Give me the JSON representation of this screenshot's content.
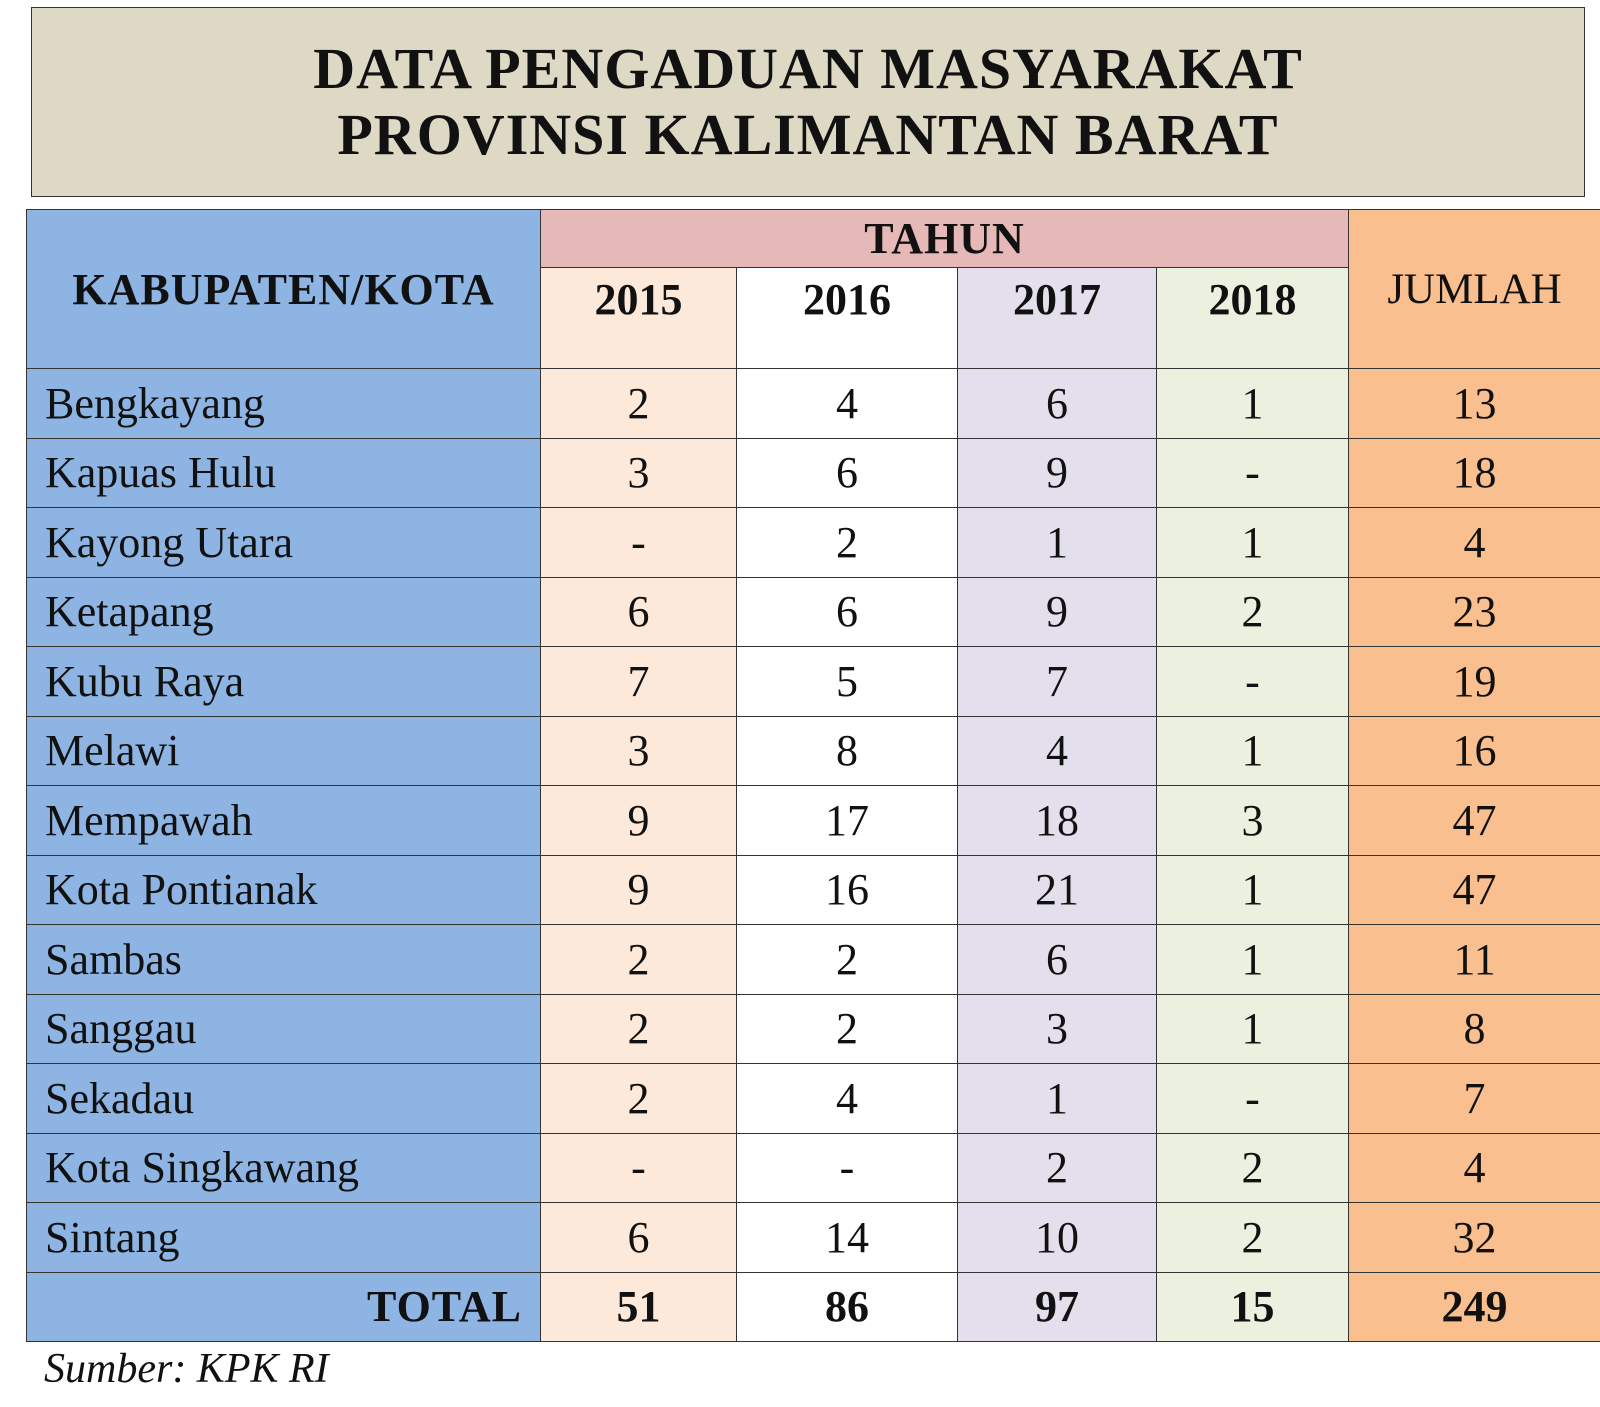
{
  "title": {
    "line1": "DATA PENGADUAN MASYARAKAT",
    "line2": "PROVINSI KALIMANTAN BARAT"
  },
  "table": {
    "header": {
      "region": "KABUPATEN/KOTA",
      "year_group": "TAHUN",
      "years": [
        "2015",
        "2016",
        "2017",
        "2018"
      ],
      "total": "JUMLAH"
    },
    "rows": [
      {
        "name": "Bengkayang",
        "v": [
          "2",
          "4",
          "6",
          "1"
        ],
        "total": "13"
      },
      {
        "name": "Kapuas Hulu",
        "v": [
          "3",
          "6",
          "9",
          "-"
        ],
        "total": "18"
      },
      {
        "name": "Kayong Utara",
        "v": [
          "-",
          "2",
          "1",
          "1"
        ],
        "total": "4"
      },
      {
        "name": "Ketapang",
        "v": [
          "6",
          "6",
          "9",
          "2"
        ],
        "total": "23"
      },
      {
        "name": "Kubu Raya",
        "v": [
          "7",
          "5",
          "7",
          "-"
        ],
        "total": "19"
      },
      {
        "name": "Melawi",
        "v": [
          "3",
          "8",
          "4",
          "1"
        ],
        "total": "16"
      },
      {
        "name": "Mempawah",
        "v": [
          "9",
          "17",
          "18",
          "3"
        ],
        "total": "47"
      },
      {
        "name": "Kota Pontianak",
        "v": [
          "9",
          "16",
          "21",
          "1"
        ],
        "total": "47"
      },
      {
        "name": "Sambas",
        "v": [
          "2",
          "2",
          "6",
          "1"
        ],
        "total": "11"
      },
      {
        "name": "Sanggau",
        "v": [
          "2",
          "2",
          "3",
          "1"
        ],
        "total": "8"
      },
      {
        "name": "Sekadau",
        "v": [
          "2",
          "4",
          "1",
          "-"
        ],
        "total": "7"
      },
      {
        "name": "Kota Singkawang",
        "v": [
          "-",
          "-",
          "2",
          "2"
        ],
        "total": "4"
      },
      {
        "name": "Sintang",
        "v": [
          "6",
          "14",
          "10",
          "2"
        ],
        "total": "32"
      }
    ],
    "totals": {
      "label": "TOTAL",
      "v": [
        "51",
        "86",
        "97",
        "15"
      ],
      "total": "249"
    }
  },
  "source": "Sumber: KPK RI",
  "colors": {
    "title_bg": "#ddd9c4",
    "region_col": "#8db4e2",
    "tahun_header": "#e6b8b7",
    "col_2015": "#fde9d9",
    "col_2016": "#ffffff",
    "col_2017": "#e4dfec",
    "col_2018": "#ebf1de",
    "col_jumlah": "#fabf8f"
  }
}
